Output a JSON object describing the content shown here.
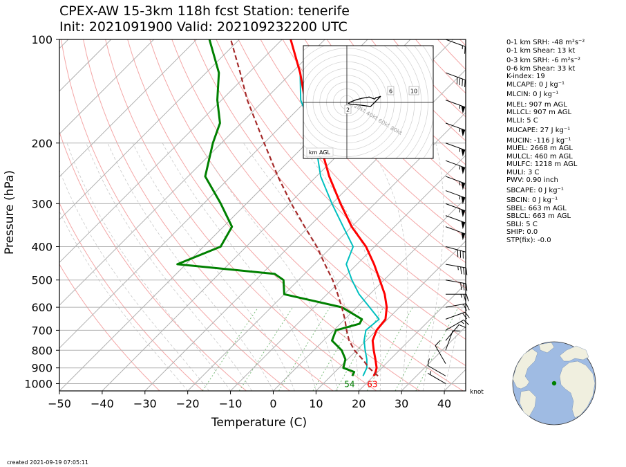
{
  "title_line1": "CPEX-AW 15-3km  118h fcst  Station: tenerife",
  "title_line2": "Init: 2021091900  Valid: 202109232200 UTC",
  "created": "created 2021-09-19 07:05:11",
  "wind_unit": "knot",
  "hodograph_label": "km AGL",
  "hodograph": {
    "ring_labels": [
      "20kt",
      "40kt",
      "60kt",
      "80kt"
    ],
    "height_marks": [
      "2",
      "6",
      "10"
    ],
    "trace": [
      [
        2,
        -2
      ],
      [
        4,
        0
      ],
      [
        9,
        2
      ],
      [
        14,
        4
      ],
      [
        22,
        6
      ],
      [
        28,
        7
      ],
      [
        33,
        8
      ],
      [
        38,
        6
      ],
      [
        41,
        5
      ],
      [
        43,
        7
      ],
      [
        47,
        8
      ],
      [
        50,
        9
      ],
      [
        45,
        4
      ],
      [
        40,
        -1
      ],
      [
        35,
        -6
      ],
      [
        20,
        -4
      ],
      [
        8,
        -3
      ],
      [
        3,
        -2
      ]
    ]
  },
  "indices": [
    "0-1 km SRH: -48 m²s⁻²",
    "0-1 km Shear: 13 kt",
    "0-3 km SRH: -6 m²s⁻²",
    "0-6 km Shear: 33 kt",
    "K-index: 19",
    "MLCAPE: 0 J kg⁻¹",
    "MLCIN: 0 J kg⁻¹",
    "MLEL: 907 m AGL",
    "MLLCL: 907 m AGL",
    "MLLI: 5 C",
    "MUCAPE: 27 J kg⁻¹",
    "MUCIN: -116 J kg⁻¹",
    "MUEL: 2668 m AGL",
    "MULCL: 460 m AGL",
    "MULFC: 1218 m AGL",
    "MULI: 3 C",
    "PWV: 0.90 inch",
    "SBCAPE: 0 J kg⁻¹",
    "SBCIN: 0 J kg⁻¹",
    "SBEL: 663 m AGL",
    "SBLCL: 663 m AGL",
    "SBLI: 5 C",
    "SHIP: 0.0",
    "STP(fix): -0.0"
  ],
  "colors": {
    "temperature": "#ff0000",
    "dewpoint": "#008000",
    "virtual_temp": "#00bfbf",
    "parcel": "#a52a2a",
    "isotherm": "#b0b0b0",
    "dry_adiabat": "#f4a6a6",
    "moist_adiabat": "#c8c8c8",
    "mixing_ratio": "#7fbf7f",
    "ocean": "#9fbbe3",
    "land": "#f0efdf",
    "station_dot": "#008000"
  },
  "chart_data": {
    "type": "line",
    "subtype": "skew-T log-P",
    "xlabel": "Temperature (C)",
    "ylabel": "Pressure (hPa)",
    "xlim": [
      -50,
      45
    ],
    "ylim": [
      1050,
      100
    ],
    "yscale": "log",
    "x_ticks": [
      -50,
      -40,
      -30,
      -20,
      -10,
      0,
      10,
      20,
      30,
      40
    ],
    "x_tick_labels": [
      "−50",
      "−40",
      "−30",
      "−20",
      "−10",
      "0",
      "10",
      "20",
      "30",
      "40"
    ],
    "y_ticks": [
      100,
      200,
      300,
      400,
      500,
      600,
      700,
      800,
      900,
      1000
    ],
    "grid": true,
    "surface_labels": {
      "dewpoint": "54",
      "temperature": "63"
    },
    "series": [
      {
        "key": "temperature",
        "p": [
          950,
          925,
          900,
          850,
          800,
          750,
          700,
          650,
          600,
          550,
          500,
          450,
          400,
          350,
          300,
          250,
          200,
          175,
          150,
          125,
          100
        ],
        "t": [
          20.0,
          19.5,
          18.8,
          16.5,
          14.0,
          11.5,
          10.0,
          9.5,
          7.0,
          3.5,
          -1.0,
          -6.0,
          -12.0,
          -20.0,
          -28.0,
          -37.0,
          -47.0,
          -53.5,
          -60.5,
          -68.0,
          -78.0
        ]
      },
      {
        "key": "virtual_temp",
        "p": [
          950,
          925,
          900,
          850,
          800,
          750,
          700,
          650,
          600,
          550,
          500,
          450,
          400,
          350,
          300,
          250,
          200,
          175,
          150,
          125,
          100
        ],
        "t": [
          17.5,
          17.0,
          16.5,
          14.5,
          12.0,
          9.5,
          7.5,
          8.0,
          3.0,
          -2.5,
          -7.5,
          -12.5,
          -15.0,
          -22.0,
          -30.0,
          -39.0,
          -48.0,
          -54.0,
          -61.5,
          -68.0,
          -78.0
        ]
      },
      {
        "key": "dewpoint",
        "p": [
          950,
          925,
          900,
          850,
          800,
          750,
          700,
          670,
          650,
          600,
          550,
          500,
          480,
          450,
          400,
          350,
          300,
          250,
          200,
          175,
          150,
          125,
          100
        ],
        "t": [
          15.0,
          14.5,
          11.0,
          9.5,
          6.5,
          2.0,
          0.5,
          4.5,
          4.0,
          -3.5,
          -20.0,
          -23.5,
          -27.0,
          -52.0,
          -46.0,
          -48.0,
          -56.0,
          -66.0,
          -72.0,
          -75.0,
          -81.0,
          -87.0,
          -97.0
        ]
      },
      {
        "key": "parcel",
        "p": [
          950,
          925,
          900,
          850,
          800,
          750,
          700,
          650,
          600,
          550,
          500,
          450,
          400,
          350,
          300,
          250,
          200,
          175,
          150,
          125,
          100
        ],
        "t": [
          21.0,
          19.0,
          17.0,
          13.5,
          9.5,
          6.0,
          3.0,
          0.0,
          -3.5,
          -7.5,
          -12.0,
          -17.5,
          -23.5,
          -31.0,
          -39.5,
          -49.0,
          -60.0,
          -66.5,
          -74.0,
          -82.0,
          -92.0
        ]
      }
    ],
    "wind_barbs": [
      {
        "p": 1000,
        "speed": 5,
        "dir": 300
      },
      {
        "p": 950,
        "speed": 10,
        "dir": 300
      },
      {
        "p": 875,
        "speed": 10,
        "dir": 330
      },
      {
        "p": 800,
        "speed": 10,
        "dir": 20
      },
      {
        "p": 750,
        "speed": 10,
        "dir": 40
      },
      {
        "p": 700,
        "speed": 15,
        "dir": 60
      },
      {
        "p": 650,
        "speed": 20,
        "dir": 70
      },
      {
        "p": 600,
        "speed": 20,
        "dir": 80
      },
      {
        "p": 550,
        "speed": 25,
        "dir": 90
      },
      {
        "p": 500,
        "speed": 30,
        "dir": 100
      },
      {
        "p": 450,
        "speed": 35,
        "dir": 100
      },
      {
        "p": 400,
        "speed": 40,
        "dir": 105
      },
      {
        "p": 350,
        "speed": 50,
        "dir": 110
      },
      {
        "p": 325,
        "speed": 50,
        "dir": 110
      },
      {
        "p": 300,
        "speed": 55,
        "dir": 110
      },
      {
        "p": 275,
        "speed": 55,
        "dir": 110
      },
      {
        "p": 250,
        "speed": 55,
        "dir": 110
      },
      {
        "p": 225,
        "speed": 55,
        "dir": 110
      },
      {
        "p": 200,
        "speed": 55,
        "dir": 110
      },
      {
        "p": 175,
        "speed": 55,
        "dir": 110
      },
      {
        "p": 150,
        "speed": 55,
        "dir": 110
      },
      {
        "p": 125,
        "speed": 40,
        "dir": 110
      },
      {
        "p": 100,
        "speed": 15,
        "dir": 110
      }
    ]
  }
}
